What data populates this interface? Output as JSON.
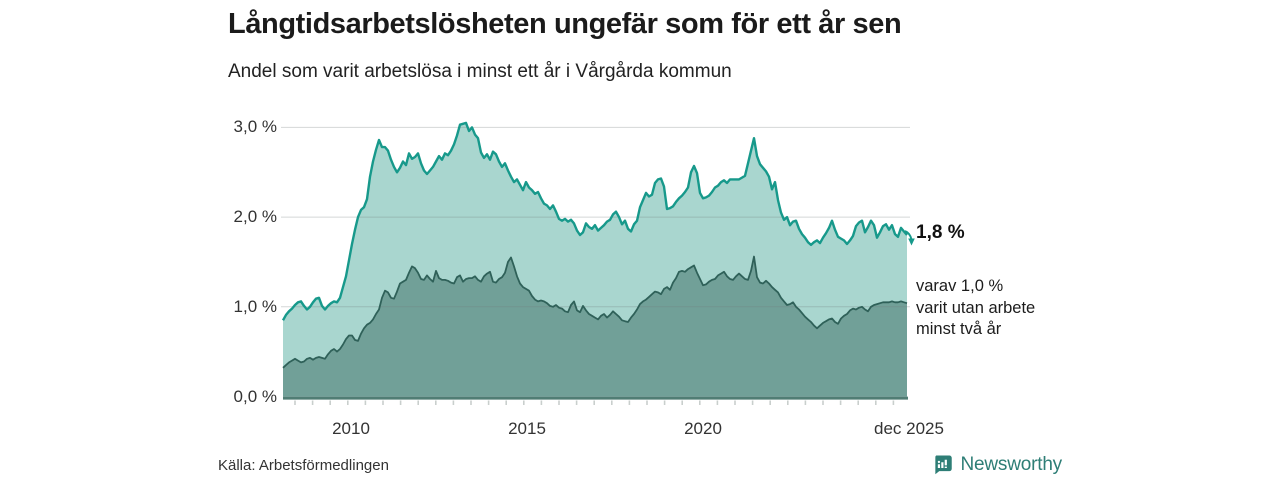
{
  "header": {
    "title": "Långtidsarbetslösheten ungefär som för ett år sen",
    "subtitle": "Andel som varit arbetslösa i minst ett år i Vårgårda kommun"
  },
  "chart_data": {
    "type": "area",
    "title": "Långtidsarbetslösheten ungefär som för ett år sen",
    "subtitle": "Andel som varit arbetslösa i minst ett år i Vårgårda kommun",
    "region": "Vårgårda kommun",
    "y_unit": "%",
    "ylim": [
      0,
      3.3
    ],
    "x_start_year": 2008.17,
    "x_end_year": 2025.92,
    "grid": true,
    "y_tick_values": [
      3,
      2,
      1,
      0
    ],
    "y_tick_labels": [
      "3,0 %",
      "2,0 %",
      "1,0 %",
      "0,0 %"
    ],
    "x_tick_years": [
      2010,
      2015,
      2020,
      2025.92
    ],
    "x_tick_labels": [
      "2010",
      "2015",
      "2020",
      "dec 2025"
    ],
    "series": [
      {
        "name": "Andel arbetslösa minst ett år",
        "color": "#17998b",
        "fill": "#a9d6cf",
        "end_value": 1.8,
        "values": [
          0.85,
          0.91,
          0.95,
          0.98,
          1.02,
          1.05,
          1.06,
          1.01,
          0.97,
          1.0,
          1.05,
          1.09,
          1.1,
          1.01,
          0.97,
          1.01,
          1.04,
          1.06,
          1.05,
          1.1,
          1.22,
          1.34,
          1.52,
          1.7,
          1.86,
          2.0,
          2.08,
          2.11,
          2.2,
          2.45,
          2.62,
          2.75,
          2.86,
          2.78,
          2.78,
          2.74,
          2.64,
          2.56,
          2.5,
          2.55,
          2.62,
          2.58,
          2.71,
          2.65,
          2.67,
          2.71,
          2.6,
          2.52,
          2.48,
          2.52,
          2.56,
          2.62,
          2.68,
          2.64,
          2.71,
          2.69,
          2.74,
          2.81,
          2.91,
          3.03,
          3.04,
          3.05,
          2.96,
          3.0,
          2.92,
          2.88,
          2.72,
          2.66,
          2.7,
          2.64,
          2.73,
          2.7,
          2.62,
          2.56,
          2.6,
          2.52,
          2.45,
          2.39,
          2.42,
          2.36,
          2.3,
          2.39,
          2.33,
          2.3,
          2.26,
          2.28,
          2.21,
          2.15,
          2.13,
          2.09,
          2.13,
          2.06,
          1.98,
          1.96,
          1.98,
          1.95,
          1.97,
          1.93,
          1.85,
          1.8,
          1.83,
          1.93,
          1.89,
          1.87,
          1.91,
          1.85,
          1.88,
          1.91,
          1.95,
          1.97,
          2.03,
          2.06,
          2.0,
          1.92,
          1.96,
          1.87,
          1.84,
          1.92,
          1.96,
          2.11,
          2.19,
          2.27,
          2.23,
          2.25,
          2.38,
          2.42,
          2.43,
          2.34,
          2.09,
          2.1,
          2.12,
          2.17,
          2.21,
          2.24,
          2.28,
          2.33,
          2.5,
          2.57,
          2.49,
          2.27,
          2.21,
          2.22,
          2.24,
          2.28,
          2.33,
          2.35,
          2.39,
          2.41,
          2.38,
          2.42,
          2.42,
          2.42,
          2.42,
          2.44,
          2.46,
          2.6,
          2.74,
          2.88,
          2.68,
          2.59,
          2.55,
          2.51,
          2.45,
          2.31,
          2.39,
          2.19,
          2.05,
          1.97,
          2.0,
          1.91,
          1.95,
          1.96,
          1.87,
          1.81,
          1.77,
          1.72,
          1.69,
          1.72,
          1.74,
          1.71,
          1.77,
          1.82,
          1.88,
          1.96,
          1.86,
          1.78,
          1.76,
          1.74,
          1.7,
          1.74,
          1.79,
          1.9,
          1.94,
          1.96,
          1.83,
          1.89,
          1.96,
          1.91,
          1.77,
          1.83,
          1.9,
          1.92,
          1.86,
          1.91,
          1.81,
          1.78,
          1.88,
          1.84,
          1.8
        ]
      },
      {
        "name": "Varav utan arbete minst två år",
        "color": "#2f6159",
        "fill": "#71a098",
        "end_value": 1.0,
        "values": [
          0.32,
          0.35,
          0.38,
          0.4,
          0.42,
          0.4,
          0.38,
          0.39,
          0.42,
          0.43,
          0.41,
          0.43,
          0.44,
          0.43,
          0.42,
          0.47,
          0.51,
          0.53,
          0.5,
          0.53,
          0.58,
          0.64,
          0.68,
          0.68,
          0.63,
          0.62,
          0.7,
          0.76,
          0.8,
          0.82,
          0.86,
          0.92,
          0.97,
          1.1,
          1.18,
          1.16,
          1.1,
          1.09,
          1.17,
          1.26,
          1.28,
          1.3,
          1.38,
          1.45,
          1.43,
          1.38,
          1.31,
          1.3,
          1.35,
          1.31,
          1.28,
          1.4,
          1.32,
          1.3,
          1.3,
          1.29,
          1.27,
          1.26,
          1.33,
          1.35,
          1.28,
          1.31,
          1.32,
          1.32,
          1.34,
          1.3,
          1.28,
          1.34,
          1.37,
          1.39,
          1.28,
          1.27,
          1.31,
          1.33,
          1.38,
          1.5,
          1.55,
          1.45,
          1.34,
          1.26,
          1.22,
          1.2,
          1.18,
          1.12,
          1.08,
          1.06,
          1.07,
          1.06,
          1.04,
          1.01,
          1.0,
          1.02,
          0.99,
          0.98,
          0.95,
          0.94,
          1.02,
          1.06,
          0.96,
          0.94,
          1.01,
          0.96,
          0.92,
          0.9,
          0.88,
          0.86,
          0.9,
          0.92,
          0.88,
          0.91,
          0.95,
          0.92,
          0.89,
          0.85,
          0.84,
          0.83,
          0.88,
          0.92,
          0.97,
          1.03,
          1.06,
          1.08,
          1.11,
          1.14,
          1.17,
          1.16,
          1.14,
          1.2,
          1.22,
          1.19,
          1.27,
          1.32,
          1.39,
          1.4,
          1.39,
          1.42,
          1.44,
          1.46,
          1.38,
          1.31,
          1.24,
          1.25,
          1.28,
          1.3,
          1.31,
          1.35,
          1.37,
          1.39,
          1.34,
          1.31,
          1.3,
          1.34,
          1.37,
          1.34,
          1.31,
          1.3,
          1.4,
          1.56,
          1.33,
          1.27,
          1.26,
          1.29,
          1.26,
          1.22,
          1.19,
          1.16,
          1.1,
          1.06,
          1.02,
          1.03,
          1.05,
          1.0,
          0.97,
          0.93,
          0.89,
          0.86,
          0.83,
          0.79,
          0.76,
          0.79,
          0.82,
          0.84,
          0.86,
          0.87,
          0.83,
          0.81,
          0.87,
          0.9,
          0.92,
          0.96,
          0.98,
          0.97,
          0.99,
          1.0,
          0.97,
          0.95,
          1.0,
          1.02,
          1.03,
          1.04,
          1.05,
          1.05,
          1.05,
          1.06,
          1.05,
          1.05,
          1.06,
          1.05,
          1.04
        ]
      }
    ],
    "annotations": {
      "end_value_label": "1,8 %",
      "sub_label_lines": [
        "varav 1,0 %",
        "varit utan arbete",
        "minst två år"
      ]
    }
  },
  "footer": {
    "source": "Källa: Arbetsförmedlingen",
    "brand": "Newsworthy"
  },
  "colors": {
    "series1_line": "#17998b",
    "series1_fill": "#a9d6cf",
    "series2_line": "#2f6159",
    "series2_fill": "#71a098",
    "baseline": "#507d74",
    "grid": "#d9dedd",
    "brand_teal": "#2e7e76"
  }
}
